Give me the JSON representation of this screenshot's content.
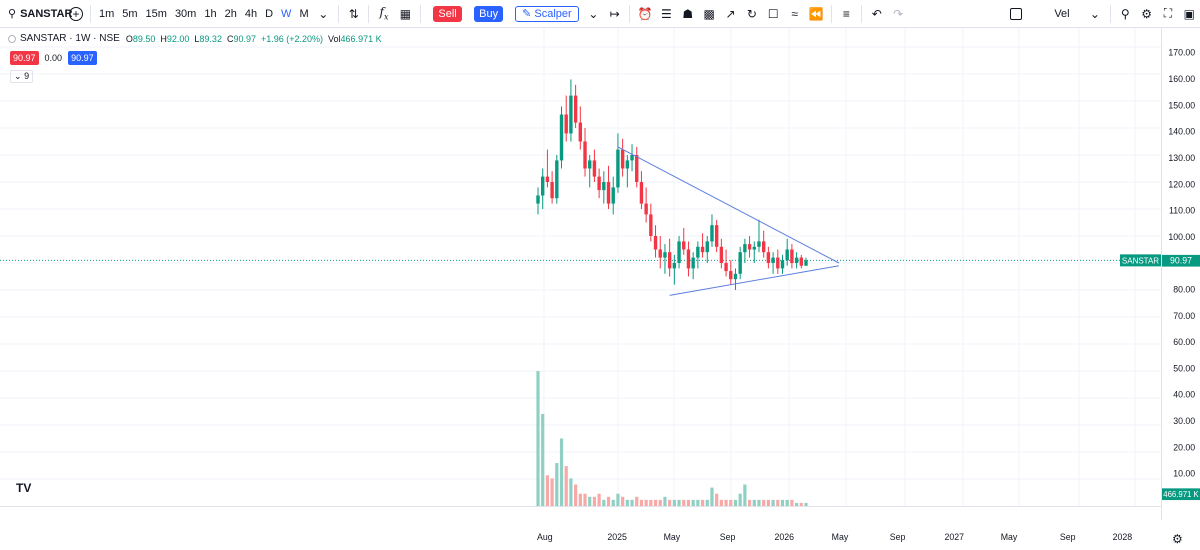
{
  "toolbar": {
    "symbol": "SANSTAR",
    "intervals": [
      "1m",
      "5m",
      "15m",
      "30m",
      "1h",
      "2h",
      "4h",
      "D",
      "W",
      "M"
    ],
    "active_interval": "W",
    "sell_label": "Sell",
    "buy_label": "Buy",
    "scalper_label": "Scalper",
    "layout_name": "Vel"
  },
  "legend": {
    "title": "SANSTAR · 1W · NSE",
    "open_k": "O",
    "open": "89.50",
    "high_k": "H",
    "high": "92.00",
    "low_k": "L",
    "low": "89.32",
    "close_k": "C",
    "close": "90.97",
    "change": "+1.96 (+2.20%)",
    "vol_k": "Vol",
    "vol": "466.971 K",
    "bid": "90.97",
    "spread": "0.00",
    "ask": "90.97",
    "indicators_count": "9"
  },
  "price_label": {
    "symbol": "SANSTAR",
    "value": "90.97"
  },
  "volume_label": "466.971 K",
  "colors": {
    "up": "#089981",
    "down": "#f23645",
    "up_vol": "#8fd0c4",
    "down_vol": "#f7a9a7",
    "trend": "#5b7fde",
    "accent": "#2962ff"
  },
  "chart_data": {
    "type": "candlestick",
    "y_ticks": [
      "170.00",
      "160.00",
      "150.00",
      "140.00",
      "130.00",
      "120.00",
      "110.00",
      "100.00",
      "90.00",
      "80.00",
      "70.00",
      "60.00",
      "50.00",
      "40.00",
      "30.00",
      "20.00",
      "10.00"
    ],
    "ylim": [
      0,
      174
    ],
    "x_ticks": [
      "Aug",
      "2025",
      "May",
      "Sep",
      "2026",
      "May",
      "Sep",
      "2027",
      "May",
      "Sep",
      "2028"
    ],
    "last_price": 90.97,
    "candles": [
      [
        112,
        118,
        108,
        115
      ],
      [
        115,
        125,
        110,
        122
      ],
      [
        122,
        132,
        118,
        120
      ],
      [
        120,
        124,
        112,
        114
      ],
      [
        114,
        130,
        112,
        128
      ],
      [
        128,
        148,
        125,
        145
      ],
      [
        145,
        152,
        135,
        138
      ],
      [
        138,
        158,
        135,
        152
      ],
      [
        152,
        156,
        140,
        142
      ],
      [
        142,
        148,
        132,
        135
      ],
      [
        135,
        140,
        122,
        125
      ],
      [
        125,
        130,
        118,
        128
      ],
      [
        128,
        132,
        120,
        122
      ],
      [
        122,
        125,
        114,
        117
      ],
      [
        117,
        124,
        112,
        120
      ],
      [
        120,
        126,
        110,
        112
      ],
      [
        112,
        122,
        108,
        118
      ],
      [
        118,
        138,
        116,
        132
      ],
      [
        132,
        136,
        122,
        125
      ],
      [
        125,
        130,
        118,
        128
      ],
      [
        128,
        134,
        124,
        130
      ],
      [
        130,
        133,
        118,
        120
      ],
      [
        120,
        124,
        110,
        112
      ],
      [
        112,
        118,
        105,
        108
      ],
      [
        108,
        112,
        98,
        100
      ],
      [
        100,
        104,
        92,
        95
      ],
      [
        95,
        100,
        88,
        92
      ],
      [
        92,
        97,
        86,
        94
      ],
      [
        94,
        99,
        85,
        88
      ],
      [
        88,
        93,
        82,
        90
      ],
      [
        90,
        100,
        88,
        98
      ],
      [
        98,
        103,
        93,
        95
      ],
      [
        95,
        98,
        85,
        88
      ],
      [
        88,
        94,
        84,
        92
      ],
      [
        92,
        98,
        88,
        96
      ],
      [
        96,
        101,
        92,
        94
      ],
      [
        94,
        100,
        90,
        98
      ],
      [
        98,
        108,
        96,
        104
      ],
      [
        104,
        106,
        94,
        96
      ],
      [
        96,
        99,
        88,
        90
      ],
      [
        90,
        95,
        85,
        87
      ],
      [
        87,
        91,
        82,
        84
      ],
      [
        84,
        88,
        80,
        86
      ],
      [
        86,
        96,
        84,
        94
      ],
      [
        94,
        99,
        90,
        97
      ],
      [
        97,
        100,
        92,
        95
      ],
      [
        95,
        98,
        90,
        96
      ],
      [
        96,
        106,
        94,
        98
      ],
      [
        98,
        102,
        92,
        94
      ],
      [
        94,
        96,
        88,
        90
      ],
      [
        90,
        94,
        86,
        92
      ],
      [
        92,
        95,
        86,
        88
      ],
      [
        88,
        93,
        86,
        91
      ],
      [
        91,
        99,
        89,
        95
      ],
      [
        95,
        97,
        88,
        90
      ],
      [
        90,
        94,
        88,
        92
      ],
      [
        92,
        93,
        88,
        89
      ],
      [
        89,
        92,
        89,
        91
      ]
    ],
    "volumes": [
      44,
      30,
      10,
      9,
      14,
      22,
      13,
      9,
      7,
      4,
      4,
      3,
      3,
      4,
      2,
      3,
      2,
      4,
      3,
      2,
      2,
      3,
      2,
      2,
      2,
      2,
      2,
      3,
      2,
      2,
      2,
      2,
      2,
      2,
      2,
      2,
      2,
      6,
      4,
      2,
      2,
      2,
      2,
      4,
      7,
      2,
      2,
      2,
      2,
      2,
      2,
      2,
      2,
      2,
      2,
      1,
      1,
      1
    ],
    "volume_scale": 44,
    "trendlines": [
      {
        "from": {
          "bar": 17,
          "price": 133
        },
        "to": {
          "bar": 64,
          "price": 90
        }
      },
      {
        "from": {
          "bar": 28,
          "price": 78
        },
        "to": {
          "bar": 64,
          "price": 89
        }
      }
    ]
  }
}
